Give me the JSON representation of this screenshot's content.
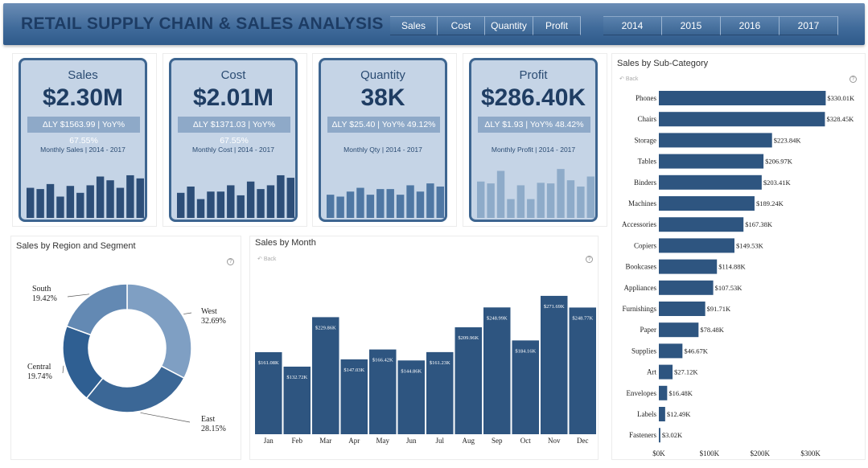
{
  "header": {
    "title": "RETAIL SUPPLY CHAIN & SALES ANALYSIS",
    "measure_tabs": [
      "Sales",
      "Cost",
      "Quantity",
      "Profit"
    ],
    "year_tabs": [
      "2014",
      "2015",
      "2016",
      "2017"
    ]
  },
  "kpis": [
    {
      "label": "Sales",
      "value": "$2.30M",
      "delta": "ΔLY $1563.99 | YoY% 67.55%",
      "sub": "Monthly Sales | 2014 - 2017",
      "bar_color": "#2d4e78",
      "bars": [
        0.48,
        0.46,
        0.54,
        0.34,
        0.51,
        0.4,
        0.52,
        0.66,
        0.6,
        0.48,
        0.68,
        0.63
      ]
    },
    {
      "label": "Cost",
      "value": "$2.01M",
      "delta": "ΔLY $1371.03 | YoY% 67.55%",
      "sub": "Monthly Cost | 2014 - 2017",
      "bar_color": "#2d4e78",
      "bars": [
        0.4,
        0.5,
        0.3,
        0.42,
        0.42,
        0.52,
        0.36,
        0.58,
        0.46,
        0.52,
        0.68,
        0.64
      ]
    },
    {
      "label": "Quantity",
      "value": "38K",
      "delta": "ΔLY $25.40 | YoY% 49.12%",
      "sub": "Monthly Qty | 2014 - 2017",
      "bar_color": "#4f77a3",
      "bars": [
        0.37,
        0.34,
        0.42,
        0.48,
        0.37,
        0.46,
        0.46,
        0.37,
        0.52,
        0.42,
        0.55,
        0.5
      ]
    },
    {
      "label": "Profit",
      "value": "$286.40K",
      "delta": "ΔLY $1.93 | YoY% 48.42%",
      "sub": "Monthly Profit | 2014 - 2017",
      "bar_color": "#8eabc9",
      "bars": [
        0.58,
        0.55,
        0.75,
        0.3,
        0.52,
        0.3,
        0.56,
        0.55,
        0.78,
        0.6,
        0.5,
        0.66
      ]
    }
  ],
  "panels": {
    "region_title": "Sales by Region and Segment",
    "month_title": "Sales by Month",
    "subcat_title": "Sales by Sub-Category",
    "back_label": "Back",
    "help_glyph": "?"
  },
  "chart_data": [
    {
      "type": "pie",
      "title": "Sales by Region and Segment",
      "donut": true,
      "labels": [
        "West",
        "East",
        "Central",
        "South"
      ],
      "values": [
        32.69,
        28.15,
        19.74,
        19.42
      ],
      "display": [
        "32.69%",
        "28.15%",
        "19.74%",
        "19.42%"
      ],
      "colors": [
        "#7f9fc3",
        "#3b6796",
        "#2f5f92",
        "#6389b3"
      ]
    },
    {
      "type": "bar",
      "title": "Sales by Month",
      "categories": [
        "Jan",
        "Feb",
        "Mar",
        "Apr",
        "May",
        "Jun",
        "Jul",
        "Aug",
        "Sep",
        "Oct",
        "Nov",
        "Dec"
      ],
      "values": [
        161.08,
        132.72,
        229.86,
        147.03,
        166.42,
        144.86,
        161.23,
        209.96,
        248.99,
        184.16,
        271.69,
        248.77
      ],
      "labels": [
        "$161.08K",
        "$132.72K",
        "$229.86K",
        "$147.03K",
        "$166.42K",
        "$144.86K",
        "$161.23K",
        "$209.96K",
        "$248.99K",
        "$184.16K",
        "$271.69K",
        "$248.77K"
      ],
      "ylim": [
        0,
        300
      ],
      "color": "#2e5580"
    },
    {
      "type": "bar",
      "orientation": "horizontal",
      "title": "Sales by Sub-Category",
      "categories": [
        "Phones",
        "Chairs",
        "Storage",
        "Tables",
        "Binders",
        "Machines",
        "Accessories",
        "Copiers",
        "Bookcases",
        "Appliances",
        "Furnishings",
        "Paper",
        "Supplies",
        "Art",
        "Envelopes",
        "Labels",
        "Fasteners"
      ],
      "values": [
        330.01,
        328.45,
        223.84,
        206.97,
        203.41,
        189.24,
        167.38,
        149.53,
        114.88,
        107.53,
        91.71,
        78.48,
        46.67,
        27.12,
        16.48,
        12.49,
        3.02
      ],
      "labels": [
        "$330.01K",
        "$328.45K",
        "$223.84K",
        "$206.97K",
        "$203.41K",
        "$189.24K",
        "$167.38K",
        "$149.53K",
        "$114.88K",
        "$107.53K",
        "$91.71K",
        "$78.48K",
        "$46.67K",
        "$27.12K",
        "$16.48K",
        "$12.49K",
        "$3.02K"
      ],
      "x_ticks": [
        "$0K",
        "$100K",
        "$200K",
        "$300K"
      ],
      "xlim": [
        0,
        350
      ],
      "color": "#2e5580"
    }
  ]
}
